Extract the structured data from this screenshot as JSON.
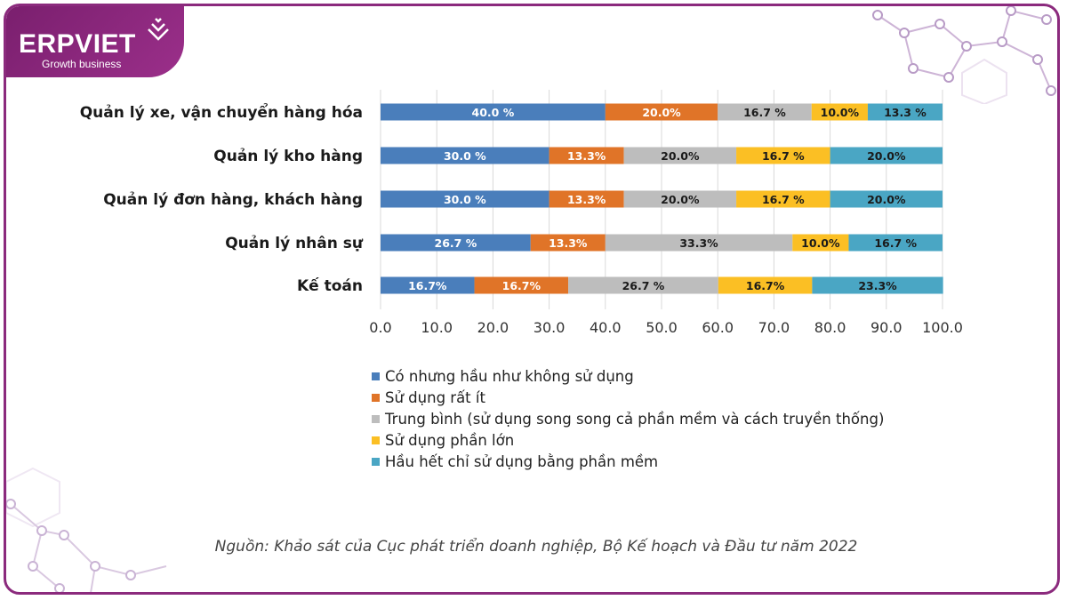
{
  "brand": {
    "name": "ERPVIET",
    "tagline": "Growth business",
    "color": "#8b2a7d"
  },
  "chart_data": {
    "type": "bar",
    "orientation": "horizontal",
    "stacked": true,
    "categories": [
      "Quản lý xe, vận chuyển hàng hóa",
      "Quản lý kho hàng",
      "Quản lý đơn hàng, khách hàng",
      "Quản lý nhân sự",
      "Kế toán"
    ],
    "series": [
      {
        "name": "Có nhưng hầu như không sử dụng",
        "color": "#4a7ebb",
        "values": [
          40.0,
          30.0,
          30.0,
          26.7,
          16.7
        ],
        "labels": [
          "40.0 %",
          "30.0 %",
          "30.0 %",
          "26.7 %",
          "16.7%"
        ],
        "label_color": "#ffffff"
      },
      {
        "name": "Sử dụng rất ít",
        "color": "#e07428",
        "values": [
          20.0,
          13.3,
          13.3,
          13.3,
          16.7
        ],
        "labels": [
          "20.0%",
          "13.3%",
          "13.3%",
          "13.3%",
          "16.7%"
        ],
        "label_color": "#ffffff"
      },
      {
        "name": "Trung bình (sử dụng song song cả phần mềm và cách truyền thống)",
        "color": "#bdbdbd",
        "values": [
          16.7,
          20.0,
          20.0,
          33.3,
          26.7
        ],
        "labels": [
          "16.7 %",
          "20.0%",
          "20.0%",
          "33.3%",
          "26.7 %"
        ],
        "label_color": "#1a1a1a"
      },
      {
        "name": "Sử dụng phần lớn",
        "color": "#fbbf24",
        "values": [
          10.0,
          16.7,
          16.7,
          10.0,
          16.7
        ],
        "labels": [
          "10.0%",
          "16.7 %",
          "16.7 %",
          "10.0%",
          "16.7%"
        ],
        "label_color": "#1a1a1a"
      },
      {
        "name": "Hầu hết chỉ sử dụng bằng phần mềm",
        "color": "#4aa6c4",
        "values": [
          13.3,
          20.0,
          20.0,
          16.7,
          23.3
        ],
        "labels": [
          "13.3 %",
          "20.0%",
          "20.0%",
          "16.7 %",
          "23.3%"
        ],
        "label_color": "#1a1a1a"
      }
    ],
    "xlim": [
      0,
      100
    ],
    "xticks": [
      "0.0",
      "10.0",
      "20.0",
      "30.0",
      "40.0",
      "50.0",
      "60.0",
      "70.0",
      "80.0",
      "90.0",
      "100.0"
    ],
    "grid": "vertical",
    "legend_position": "bottom"
  },
  "source": "Nguồn: Khảo sát của Cục phát triển doanh nghiệp, Bộ Kế hoạch và Đầu tư năm 2022"
}
